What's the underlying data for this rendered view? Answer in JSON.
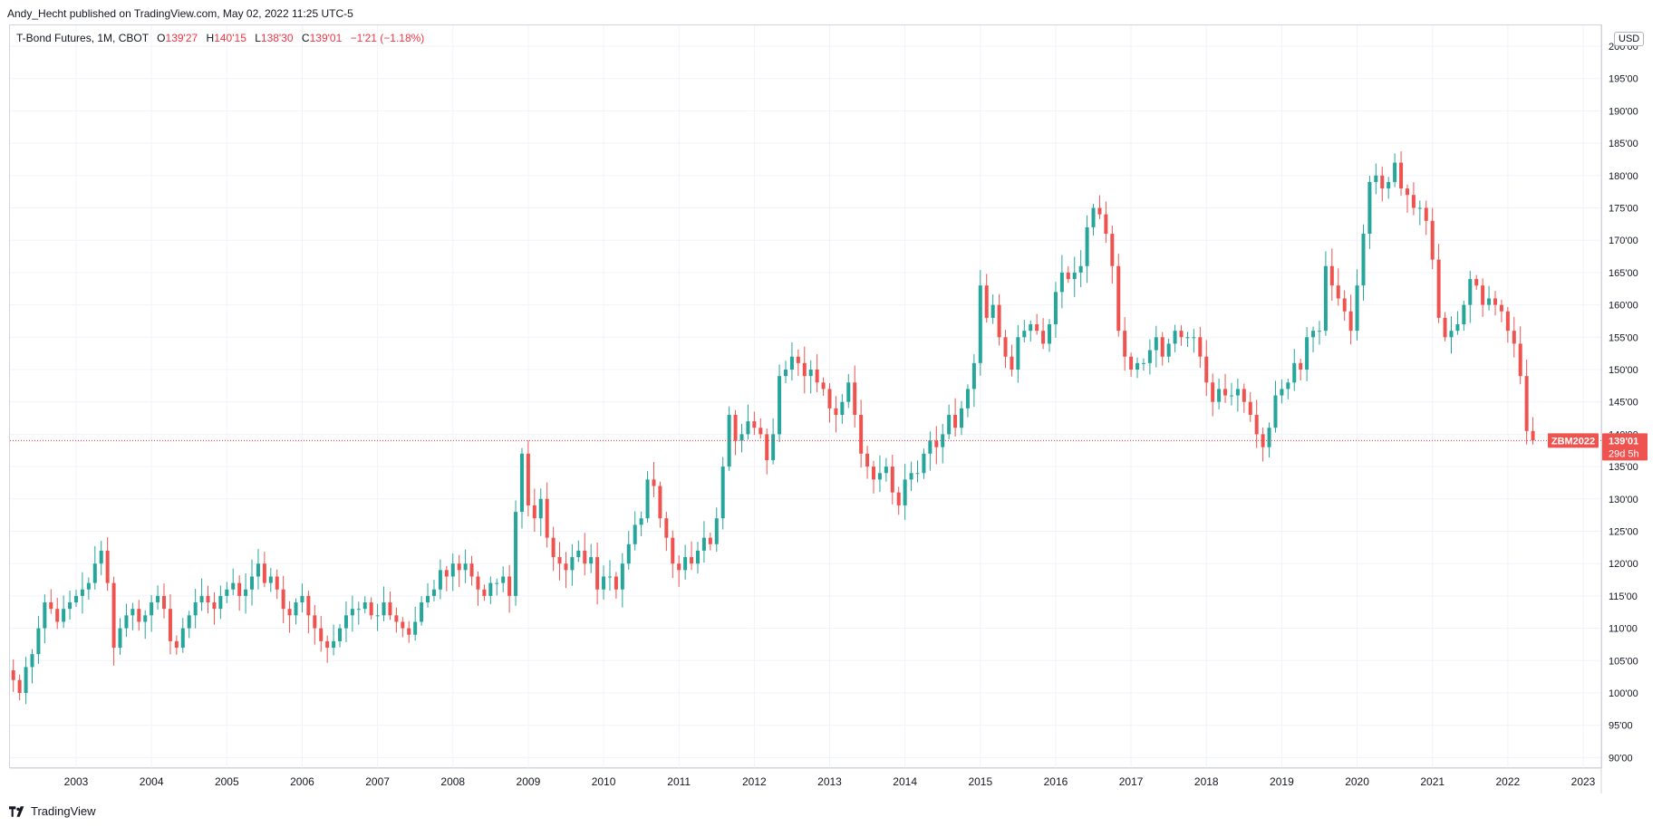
{
  "publisher_line": "Andy_Hecht published on TradingView.com, May 02, 2022 11:25 UTC-5",
  "legend": {
    "symbol": "T-Bond Futures, 1M, CBOT",
    "open_label": "O",
    "open": "139'27",
    "high_label": "H",
    "high": "140'15",
    "low_label": "L",
    "low": "138'30",
    "close_label": "C",
    "close": "139'01",
    "change": "−1'21 (−1.18%)"
  },
  "currency": "USD",
  "brand": "TradingView",
  "price_tag": {
    "contract": "ZBM2022",
    "price": "139'01",
    "countdown": "29d 5h"
  },
  "colors": {
    "up": "#26a69a",
    "down": "#ef5350",
    "grid": "#f0f3fa",
    "price_line": "#f23645"
  },
  "chart_data": {
    "type": "candlestick",
    "title": "T-Bond Futures, 1M, CBOT",
    "xlabel": "",
    "ylabel": "",
    "ylim": [
      89,
      201
    ],
    "y_ticks": [
      90,
      95,
      100,
      105,
      110,
      115,
      120,
      125,
      130,
      135,
      140,
      145,
      150,
      155,
      160,
      165,
      170,
      175,
      180,
      185,
      190,
      195,
      200
    ],
    "y_tick_labels": [
      "90'00",
      "95'00",
      "100'00",
      "105'00",
      "110'00",
      "115'00",
      "120'00",
      "125'00",
      "130'00",
      "135'00",
      "140'00",
      "145'00",
      "150'00",
      "155'00",
      "160'00",
      "165'00",
      "170'00",
      "175'00",
      "180'00",
      "185'00",
      "190'00",
      "195'00",
      "200'00"
    ],
    "x_ticks": [
      "2003",
      "2004",
      "2005",
      "2006",
      "2007",
      "2008",
      "2009",
      "2010",
      "2011",
      "2012",
      "2013",
      "2014",
      "2015",
      "2016",
      "2017",
      "2018",
      "2019",
      "2020",
      "2021",
      "2022",
      "2023"
    ],
    "last_price": 139.03,
    "grid": true,
    "series_by_year": [
      {
        "year": 2002,
        "start_month": 3,
        "close": [
          102,
          100,
          104,
          106,
          110,
          114,
          113,
          111,
          113,
          114
        ]
      },
      {
        "year": 2003,
        "close": [
          115,
          116,
          117,
          120,
          122,
          117,
          107,
          110,
          112,
          113,
          111,
          112
        ]
      },
      {
        "year": 2004,
        "close": [
          114,
          115,
          113,
          108,
          107,
          110,
          112,
          114,
          115,
          114,
          113,
          115
        ]
      },
      {
        "year": 2005,
        "close": [
          116,
          117,
          115,
          116,
          118,
          120,
          117,
          118,
          116,
          113,
          112,
          114
        ]
      },
      {
        "year": 2006,
        "close": [
          115,
          112,
          110,
          108,
          107,
          108,
          110,
          112,
          113,
          113,
          114,
          112
        ]
      },
      {
        "year": 2007,
        "close": [
          112,
          114,
          112,
          111,
          110,
          109,
          111,
          114,
          115,
          116,
          119,
          118
        ]
      },
      {
        "year": 2008,
        "close": [
          120,
          119,
          120,
          118,
          116,
          115,
          117,
          117,
          118,
          115,
          128,
          137
        ]
      },
      {
        "year": 2009,
        "close": [
          129,
          127,
          130,
          124,
          121,
          120,
          119,
          121,
          122,
          120,
          121,
          116
        ]
      },
      {
        "year": 2010,
        "close": [
          118,
          118,
          116,
          120,
          123,
          126,
          127,
          133,
          132,
          127,
          124,
          120
        ]
      },
      {
        "year": 2011,
        "close": [
          119,
          121,
          120,
          122,
          124,
          123,
          127,
          135,
          143,
          139,
          140,
          142
        ]
      },
      {
        "year": 2012,
        "close": [
          141,
          140,
          136,
          140,
          149,
          150,
          152,
          151,
          149,
          150,
          148,
          147
        ]
      },
      {
        "year": 2013,
        "close": [
          144,
          143,
          145,
          148,
          143,
          137,
          135,
          133,
          134,
          135,
          131,
          129
        ]
      },
      {
        "year": 2014,
        "close": [
          133,
          134,
          134,
          137,
          139,
          138,
          140,
          143,
          141,
          144,
          147,
          151
        ]
      },
      {
        "year": 2015,
        "close": [
          163,
          158,
          160,
          155,
          152,
          150,
          155,
          156,
          157,
          156,
          154,
          157
        ]
      },
      {
        "year": 2016,
        "close": [
          162,
          165,
          164,
          165,
          166,
          172,
          175,
          174,
          171,
          166,
          156,
          152
        ]
      },
      {
        "year": 2017,
        "close": [
          150,
          151,
          151,
          153,
          155,
          152,
          154,
          156,
          155,
          155,
          155,
          152
        ]
      },
      {
        "year": 2018,
        "close": [
          148,
          145,
          147,
          146,
          146,
          147,
          145,
          143,
          140,
          138,
          141,
          146
        ]
      },
      {
        "year": 2019,
        "close": [
          147,
          148,
          151,
          150,
          155,
          156,
          156,
          166,
          163,
          161,
          159,
          156
        ]
      },
      {
        "year": 2020,
        "close": [
          163,
          171,
          179,
          180,
          178,
          179,
          182,
          178,
          177,
          175,
          175,
          173
        ]
      },
      {
        "year": 2021,
        "close": [
          167,
          158,
          155,
          156,
          157,
          160,
          164,
          163,
          160,
          161,
          160,
          159
        ]
      },
      {
        "year": 2022,
        "close": [
          156,
          154,
          149,
          140.5,
          139.03
        ]
      }
    ]
  }
}
